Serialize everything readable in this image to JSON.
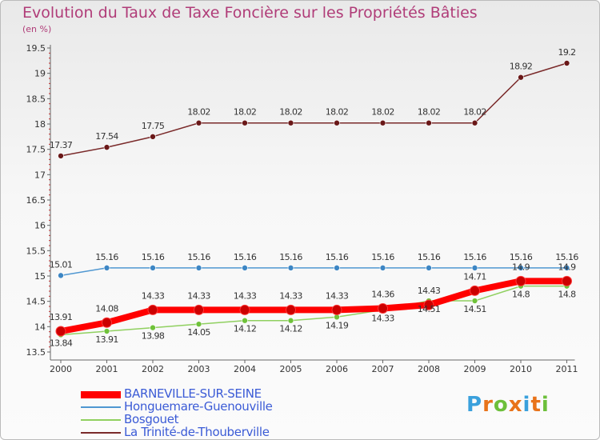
{
  "title": "Evolution du Taux de Taxe Foncière sur les Propriétés Bâties",
  "unit": "(en %)",
  "logo": {
    "text": "Proxiti",
    "letter_colors": [
      "#3aa0dc",
      "#e8731a",
      "#6cbf3a",
      "#e8731a",
      "#3aa0dc",
      "#e8731a",
      "#6cbf3a"
    ]
  },
  "chart_data": {
    "type": "line",
    "title": "Evolution du Taux de Taxe Foncière sur les Propriétés Bâties",
    "ylabel": "(en %)",
    "xlabel": "",
    "ylim": [
      13.5,
      19.5
    ],
    "yticks": [
      13.5,
      14,
      14.5,
      15,
      15.5,
      16,
      16.5,
      17,
      17.5,
      18,
      18.5,
      19,
      19.5
    ],
    "categories": [
      "2000",
      "2001",
      "2002",
      "2003",
      "2004",
      "2005",
      "2006",
      "2007",
      "2008",
      "2009",
      "2010",
      "2011"
    ],
    "series": [
      {
        "name": "BARNEVILLE-SUR-SEINE",
        "color": "#ff0000",
        "values": [
          13.91,
          14.08,
          14.33,
          14.33,
          14.33,
          14.33,
          14.33,
          14.36,
          14.43,
          14.71,
          14.9,
          14.9
        ],
        "labels": [
          "13.91",
          "14.08",
          "14.33",
          "14.33",
          "14.33",
          "14.33",
          "14.33",
          "14.36",
          "14.43",
          "14.71",
          "14.9",
          "14.9"
        ]
      },
      {
        "name": "Honguemare-Guenouville",
        "color": "#4f97d1",
        "values": [
          15.01,
          15.16,
          15.16,
          15.16,
          15.16,
          15.16,
          15.16,
          15.16,
          15.16,
          15.16,
          15.16,
          15.16
        ],
        "labels": [
          "15.01",
          "15.16",
          "15.16",
          "15.16",
          "15.16",
          "15.16",
          "15.16",
          "15.16",
          "15.16",
          "15.16",
          "15.16",
          "15.16"
        ]
      },
      {
        "name": "Bosgouet",
        "color": "#90d060",
        "values": [
          13.84,
          13.91,
          13.98,
          14.05,
          14.12,
          14.12,
          14.19,
          14.33,
          14.51,
          14.51,
          14.8,
          14.8
        ],
        "labels": [
          "13.84",
          "13.91",
          "13.98",
          "14.05",
          "14.12",
          "14.12",
          "14.19",
          "14.33",
          "14.51",
          "14.51",
          "14.8",
          "14.8"
        ]
      },
      {
        "name": "La Trinité-de-Thouberville",
        "color": "#7a2a2a",
        "values": [
          17.37,
          17.54,
          17.75,
          18.02,
          18.02,
          18.02,
          18.02,
          18.02,
          18.02,
          18.02,
          18.92,
          19.2
        ],
        "labels": [
          "17.37",
          "17.54",
          "17.75",
          "18.02",
          "18.02",
          "18.02",
          "18.02",
          "18.02",
          "18.02",
          "18.02",
          "18.92",
          "19.2"
        ]
      }
    ],
    "legend_position": "bottom-left",
    "grid": false
  }
}
